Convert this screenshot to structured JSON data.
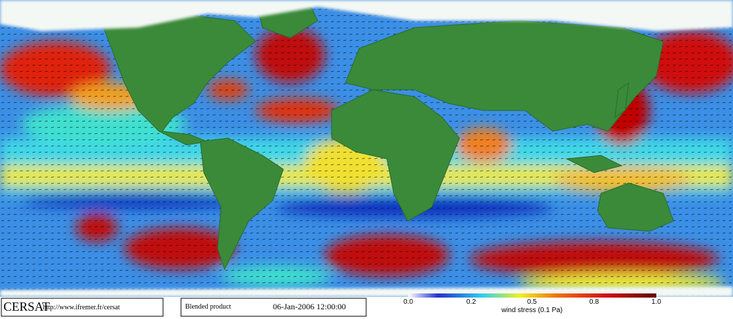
{
  "header": {
    "logo": "CERSAT",
    "url": "http://www.ifremer.fr/cersat"
  },
  "product": {
    "name": "Blended product",
    "datetime": "06-Jan-2006 12:00:00"
  },
  "colorbar": {
    "ticks": [
      "0.0",
      "0.2",
      "0.5",
      "0.8",
      "1.0"
    ],
    "label": "wind stress (0.1 Pa)"
  }
}
